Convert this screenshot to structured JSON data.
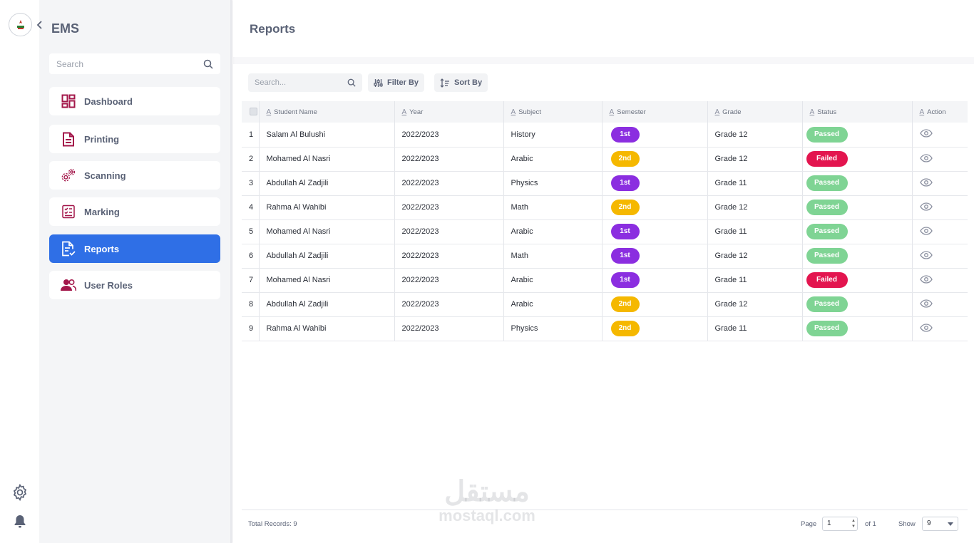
{
  "app": {
    "title": "EMS"
  },
  "sidebar": {
    "search_placeholder": "Search",
    "items": [
      {
        "label": "Dashboard",
        "icon": "dashboard-icon",
        "active": false
      },
      {
        "label": "Printing",
        "icon": "document-icon",
        "active": false
      },
      {
        "label": "Scanning",
        "icon": "gears-icon",
        "active": false
      },
      {
        "label": "Marking",
        "icon": "checklist-icon",
        "active": false
      },
      {
        "label": "Reports",
        "icon": "report-icon",
        "active": true
      },
      {
        "label": "User Roles",
        "icon": "users-icon",
        "active": false
      }
    ]
  },
  "header": {
    "title": "Reports"
  },
  "toolbar": {
    "search_placeholder": "Search...",
    "filter_label": "Filter By",
    "sort_label": "Sort By"
  },
  "table": {
    "columns": [
      "Student Name",
      "Year",
      "Subject",
      "Semester",
      "Grade",
      "Status",
      "Action"
    ],
    "rows": [
      {
        "n": "1",
        "name": "Salam Al Bulushi",
        "year": "2022/2023",
        "subject": "History",
        "semester": "1st",
        "grade": "Grade 12",
        "status": "Passed"
      },
      {
        "n": "2",
        "name": "Mohamed Al Nasri",
        "year": "2022/2023",
        "subject": "Arabic",
        "semester": "2nd",
        "grade": "Grade 12",
        "status": "Failed"
      },
      {
        "n": "3",
        "name": "Abdullah Al Zadjili",
        "year": "2022/2023",
        "subject": "Physics",
        "semester": "1st",
        "grade": "Grade 11",
        "status": "Passed"
      },
      {
        "n": "4",
        "name": "Rahma Al Wahibi",
        "year": "2022/2023",
        "subject": "Math",
        "semester": "2nd",
        "grade": "Grade 12",
        "status": "Passed"
      },
      {
        "n": "5",
        "name": "Mohamed Al Nasri",
        "year": "2022/2023",
        "subject": "Arabic",
        "semester": "1st",
        "grade": "Grade 11",
        "status": "Passed"
      },
      {
        "n": "6",
        "name": "Abdullah Al Zadjili",
        "year": "2022/2023",
        "subject": "Math",
        "semester": "1st",
        "grade": "Grade 12",
        "status": "Passed"
      },
      {
        "n": "7",
        "name": "Mohamed Al Nasri",
        "year": "2022/2023",
        "subject": "Arabic",
        "semester": "1st",
        "grade": "Grade 11",
        "status": "Failed"
      },
      {
        "n": "8",
        "name": "Abdullah Al Zadjili",
        "year": "2022/2023",
        "subject": "Arabic",
        "semester": "2nd",
        "grade": "Grade 12",
        "status": "Passed"
      },
      {
        "n": "9",
        "name": "Rahma Al Wahibi",
        "year": "2022/2023",
        "subject": "Physics",
        "semester": "2nd",
        "grade": "Grade 11",
        "status": "Passed"
      }
    ]
  },
  "pagination": {
    "total_label": "Total Records: 9",
    "page_label": "Page",
    "page_value": "1",
    "of_label": "of 1",
    "show_label": "Show",
    "show_value": "9"
  },
  "watermark": {
    "arabic": "مستقل",
    "latin": "mostaql.com"
  },
  "colors": {
    "accent": "#2f6fe6",
    "brand": "#a3174a",
    "semester_1st": "#8b2ee0",
    "semester_2nd": "#f5b800",
    "passed": "#7fd494",
    "failed": "#e3154f"
  }
}
